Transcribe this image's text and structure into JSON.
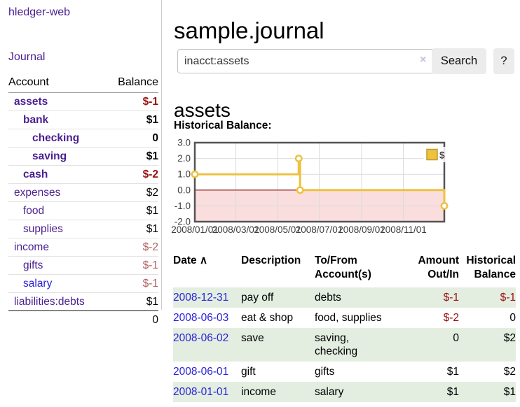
{
  "colors": {
    "link-purple": "#4a1f8f",
    "link-blue": "#2a22d9",
    "neg-strong": "#9b0e0e",
    "neg-weak": "#b25f5f",
    "row-green": "#e3eee1",
    "button-bg": "#ececec",
    "chart-line": "#edc240",
    "chart-line-border": "#c09a28",
    "chart-neg-fill": "#fadddd",
    "chart-zero": "#8b0000",
    "chart-border": "#545454",
    "chart-grid": "#dcdcdc",
    "chart-tick-text": "#3c3c3c"
  },
  "app": {
    "brand": "hledger-web",
    "nav_journal": "Journal"
  },
  "sidebar": {
    "header": {
      "account": "Account",
      "balance": "Balance"
    },
    "accounts": [
      {
        "name": "assets",
        "balance": "$-1",
        "level": 1,
        "bold": true,
        "neg": "strong"
      },
      {
        "name": "bank",
        "balance": "$1",
        "level": 2,
        "bold": true
      },
      {
        "name": "checking",
        "balance": "0",
        "level": 3,
        "bold": true
      },
      {
        "name": "saving",
        "balance": "$1",
        "level": 3,
        "bold": true
      },
      {
        "name": "cash",
        "balance": "$-2",
        "level": 2,
        "bold": true,
        "neg": "strong"
      },
      {
        "name": "expenses",
        "balance": "$2",
        "level": 1
      },
      {
        "name": "food",
        "balance": "$1",
        "level": 2
      },
      {
        "name": "supplies",
        "balance": "$1",
        "level": 2
      },
      {
        "name": "income",
        "balance": "$-2",
        "level": 1,
        "neg": "weak"
      },
      {
        "name": "gifts",
        "balance": "$-1",
        "level": 2,
        "neg": "weak"
      },
      {
        "name": "salary",
        "balance": "$-1",
        "level": 2,
        "neg": "weak",
        "link": "blue"
      },
      {
        "name": "liabilities:debts",
        "balance": "$1",
        "level": 1
      }
    ],
    "total": "0"
  },
  "main": {
    "title": "sample.journal",
    "search": {
      "value": "inacct:assets",
      "clear_icon": "×",
      "button_label": "Search",
      "help_label": "?"
    },
    "account_heading": "assets",
    "chart_label": "Historical Balance:"
  },
  "chart_data": {
    "type": "line",
    "style": "step",
    "title": "Historical Balance",
    "legend": {
      "label": "$",
      "position": "top-right"
    },
    "x_range": [
      "2008-01-01",
      "2008-12-31"
    ],
    "ylim": [
      -2.0,
      3.0
    ],
    "yticks": [
      3.0,
      2.0,
      1.0,
      0.0,
      -1.0,
      -2.0
    ],
    "ytick_labels": [
      "3.0",
      "2.0",
      "1.0",
      "0.0",
      "-1.0",
      "-2.0"
    ],
    "xticks": [
      "2008-01-01",
      "2008-03-01",
      "2008-05-01",
      "2008-07-01",
      "2008-09-01",
      "2008-11-01"
    ],
    "xtick_labels": [
      "2008/01/01",
      "2008/03/01",
      "2008/05/01",
      "2008/07/01",
      "2008/09/01",
      "2008/11/01"
    ],
    "points": [
      {
        "date": "2008-01-01",
        "value": 1
      },
      {
        "date": "2008-06-01",
        "value": 2
      },
      {
        "date": "2008-06-03",
        "value": 0
      },
      {
        "date": "2008-12-31",
        "value": -1
      }
    ],
    "negative_region_shaded": true,
    "grid": true
  },
  "table": {
    "headers": {
      "date": "Date",
      "sort_icon": "∧",
      "description": "Description",
      "accounts": "To/From Account(s)",
      "amount": "Amount Out/In",
      "balance": "Historical Balance"
    },
    "rows": [
      {
        "date": "2008-12-31",
        "description": "pay off",
        "accounts_lines": [
          "debts"
        ],
        "amount": "$-1",
        "balance": "$-1",
        "amount_neg": true,
        "balance_neg": true
      },
      {
        "date": "2008-06-03",
        "description": "eat & shop",
        "accounts_lines": [
          "food, supplies"
        ],
        "amount": "$-2",
        "balance": "0",
        "amount_neg": true,
        "balance_neg": false
      },
      {
        "date": "2008-06-02",
        "description": "save",
        "accounts_lines": [
          "saving,",
          "checking"
        ],
        "amount": "0",
        "balance": "$2",
        "amount_neg": false,
        "balance_neg": false
      },
      {
        "date": "2008-06-01",
        "description": "gift",
        "accounts_lines": [
          "gifts"
        ],
        "amount": "$1",
        "balance": "$2",
        "amount_neg": false,
        "balance_neg": false
      },
      {
        "date": "2008-01-01",
        "description": "income",
        "accounts_lines": [
          "salary"
        ],
        "amount": "$1",
        "balance": "$1",
        "amount_neg": false,
        "balance_neg": false
      }
    ]
  }
}
